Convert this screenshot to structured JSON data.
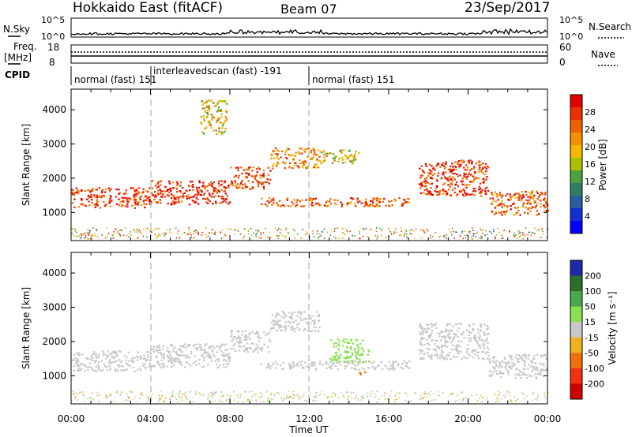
{
  "header": {
    "site": "Hokkaido East (fitACF)",
    "beam": "Beam 07",
    "date": "23/Sep/2017"
  },
  "strips": {
    "nsky_label": "N.Sky",
    "nsky_ticks": [
      "10^5",
      "10^0"
    ],
    "nsearch_label": "N.Search",
    "nsearch_ticks": [
      "10^5",
      "10^0"
    ],
    "freq_label_line1": "Freq.",
    "freq_label_line2": "[MHz]",
    "freq_ticks": [
      "18",
      "8"
    ],
    "nave_label": "Nave",
    "nave_ticks": [
      "60",
      "0"
    ],
    "cpid_label": "CPID",
    "cpid_segments": [
      {
        "text": "normal (fast) 151"
      },
      {
        "text": "interleavedscan (fast) -191"
      },
      {
        "text": "normal (fast) 151"
      }
    ]
  },
  "colorbars": {
    "power": {
      "label": "Power [dB]",
      "ticks": [
        "28",
        "24",
        "20",
        "16",
        "12",
        "8",
        "4"
      ],
      "colors": [
        "#e00000",
        "#ee3000",
        "#f06000",
        "#f49000",
        "#f5b800",
        "#a8c000",
        "#50a040",
        "#2f8060",
        "#2a5ea0",
        "#1030d0",
        "#0000ff"
      ]
    },
    "velocity": {
      "label": "Velocity [m s⁻¹]",
      "ticks": [
        "200",
        "100",
        "50",
        "15",
        "-15",
        "-50",
        "-100",
        "-200"
      ],
      "colors": [
        "#1c2aa8",
        "#2c6e2c",
        "#4ca84c",
        "#8ae050",
        "#c8c8c8",
        "#f0b020",
        "#f07010",
        "#f03010",
        "#d00000"
      ]
    }
  },
  "axes": {
    "ylabel": "Slant Range [km]",
    "yticks": [
      "4000",
      "3000",
      "2000",
      "1000"
    ],
    "xlabel": "Time UT",
    "xticks": [
      "00:00",
      "04:00",
      "08:00",
      "12:00",
      "16:00",
      "20:00",
      "00:00"
    ]
  },
  "chart_data": [
    {
      "type": "heatmap",
      "title": "Power",
      "xlabel": "Time UT",
      "ylabel": "Slant Range [km]",
      "xlim": [
        0,
        24
      ],
      "ylim": [
        180,
        4600
      ],
      "colorscale": "Power [dB]",
      "series": [
        {
          "start": 0,
          "end": 4,
          "range_lo": 1150,
          "range_hi": 1750,
          "value": 26
        },
        {
          "start": 4,
          "end": 8,
          "range_lo": 1250,
          "range_hi": 1950,
          "value": 27
        },
        {
          "start": 8,
          "end": 10,
          "range_lo": 1700,
          "range_hi": 2350,
          "value": 25
        },
        {
          "start": 10,
          "end": 12.5,
          "range_lo": 2300,
          "range_hi": 2900,
          "value": 22
        },
        {
          "start": 12.5,
          "end": 14.5,
          "range_lo": 2450,
          "range_hi": 2850,
          "value": 18
        },
        {
          "start": 9.5,
          "end": 17,
          "range_lo": 1200,
          "range_hi": 1450,
          "value": 24
        },
        {
          "start": 17.5,
          "end": 21,
          "range_lo": 1500,
          "range_hi": 2550,
          "value": 26
        },
        {
          "start": 21,
          "end": 24,
          "range_lo": 950,
          "range_hi": 1650,
          "value": 24
        },
        {
          "start": 6.5,
          "end": 7.8,
          "range_lo": 3300,
          "range_hi": 4300,
          "value": 18
        }
      ]
    },
    {
      "type": "heatmap",
      "title": "Velocity",
      "xlabel": "Time UT",
      "ylabel": "Slant Range [km]",
      "xlim": [
        0,
        24
      ],
      "ylim": [
        180,
        4600
      ],
      "colorscale": "Velocity [m s⁻¹]",
      "series": [
        {
          "start": 0,
          "end": 4,
          "range_lo": 1150,
          "range_hi": 1750,
          "value": 0
        },
        {
          "start": 4,
          "end": 8,
          "range_lo": 1250,
          "range_hi": 1950,
          "value": 0
        },
        {
          "start": 8,
          "end": 10,
          "range_lo": 1700,
          "range_hi": 2350,
          "value": 0
        },
        {
          "start": 10,
          "end": 12.5,
          "range_lo": 2300,
          "range_hi": 2900,
          "value": 0
        },
        {
          "start": 13,
          "end": 15,
          "range_lo": 1400,
          "range_hi": 2100,
          "value": 30
        },
        {
          "start": 9.5,
          "end": 17,
          "range_lo": 1200,
          "range_hi": 1450,
          "value": 0
        },
        {
          "start": 17.5,
          "end": 21,
          "range_lo": 1500,
          "range_hi": 2550,
          "value": 0
        },
        {
          "start": 21,
          "end": 24,
          "range_lo": 950,
          "range_hi": 1650,
          "value": 0
        },
        {
          "start": 14.5,
          "end": 15,
          "range_lo": 1050,
          "range_hi": 1150,
          "value": -60
        }
      ]
    }
  ]
}
